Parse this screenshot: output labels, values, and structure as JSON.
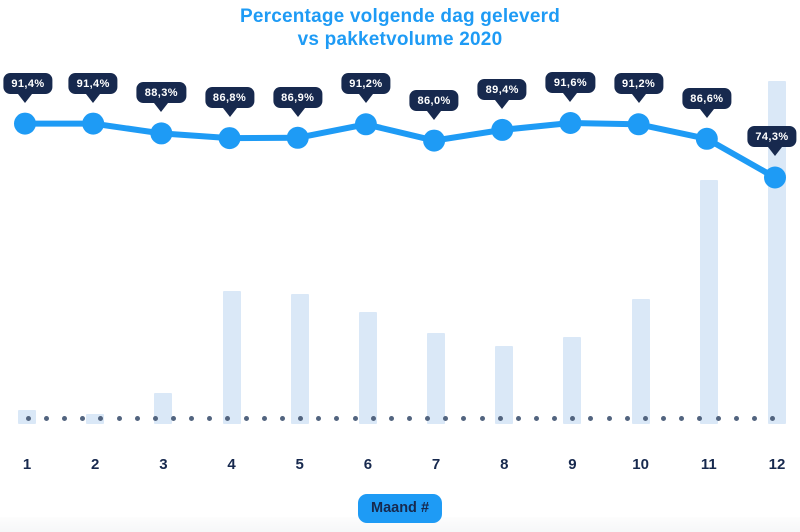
{
  "title": {
    "line1": "Percentage volgende dag geleverd",
    "line2": "vs pakketvolume 2020"
  },
  "xaxis": {
    "title": "Maand #",
    "labels": [
      "1",
      "2",
      "3",
      "4",
      "5",
      "6",
      "7",
      "8",
      "9",
      "10",
      "11",
      "12"
    ]
  },
  "colors": {
    "accent": "#1E9BF5",
    "navy": "#17294E",
    "bar_fill": "#DAE8F7",
    "baseline_dot": "#52647F",
    "badge_text": "#FFFFFF",
    "background": "#FFFFFF"
  },
  "chart_data": {
    "type": "combo (line + bar)",
    "title": "Percentage volgende dag geleverd vs pakketvolume 2020",
    "xlabel": "Maand #",
    "ylabel": "",
    "categories": [
      1,
      2,
      3,
      4,
      5,
      6,
      7,
      8,
      9,
      10,
      11,
      12
    ],
    "series": [
      {
        "name": "Percentage volgende dag geleverd",
        "type": "line",
        "unit": "%",
        "values": [
          91.4,
          91.4,
          88.3,
          86.8,
          86.9,
          91.2,
          86.0,
          89.4,
          91.6,
          91.2,
          86.6,
          74.3
        ],
        "point_labels": [
          "91,4%",
          "91,4%",
          "88,3%",
          "86,8%",
          "86,9%",
          "91,2%",
          "86,0%",
          "89,4%",
          "91,6%",
          "91,2%",
          "86,6%",
          "74,3%"
        ]
      },
      {
        "name": "Pakketvolume 2020",
        "type": "bar",
        "unit": "relative volume (no axis shown, max month = 100)",
        "values": [
          4.1,
          2.9,
          9.0,
          38.8,
          37.9,
          32.7,
          26.5,
          22.7,
          25.4,
          36.4,
          71.1,
          100
        ]
      }
    ],
    "y_axis_visible": false,
    "grid": false,
    "legend": false,
    "annotations": "dark navy tooltip-style value badges above each line point; dotted slate baseline under bars"
  }
}
